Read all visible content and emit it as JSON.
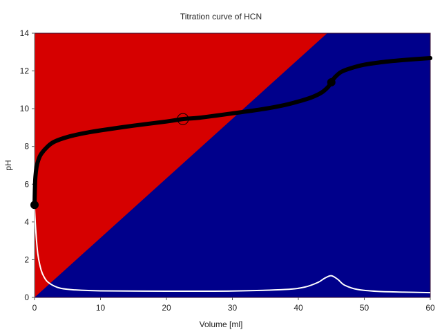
{
  "chart_data": {
    "type": "line",
    "title": "Titration curve of HCN",
    "xlabel": "Volume [ml]",
    "ylabel": "pH",
    "xlim": [
      0,
      60
    ],
    "ylim": [
      0,
      14
    ],
    "xticks": [
      0,
      10,
      20,
      30,
      40,
      50,
      60
    ],
    "yticks": [
      0,
      2,
      4,
      6,
      8,
      10,
      12,
      14
    ],
    "grid": false,
    "legend": null,
    "background_regions": [
      {
        "name": "acid-region",
        "color": "#d60000",
        "description": "upper-left triangle above diagonal"
      },
      {
        "name": "base-region",
        "color": "#00008b",
        "description": "lower-right area below diagonal from (0,0) to (~45,14)"
      }
    ],
    "series": [
      {
        "name": "pH",
        "color": "#000000",
        "line_width": 6,
        "x": [
          0,
          0.1,
          0.3,
          0.6,
          1,
          2,
          3,
          5,
          7.5,
          10,
          15,
          20,
          22.5,
          25,
          30,
          35,
          38,
          40,
          42,
          43.5,
          44.5,
          45,
          45.5,
          46.5,
          48,
          50,
          53,
          56,
          60
        ],
        "y": [
          4.9,
          6.2,
          6.9,
          7.3,
          7.6,
          8.0,
          8.25,
          8.5,
          8.7,
          8.85,
          9.1,
          9.32,
          9.45,
          9.52,
          9.75,
          10.0,
          10.2,
          10.38,
          10.6,
          10.85,
          11.15,
          11.4,
          11.65,
          11.95,
          12.15,
          12.33,
          12.48,
          12.58,
          12.68
        ]
      },
      {
        "name": "derivative",
        "color": "#ffffff",
        "line_width": 2,
        "x": [
          0,
          0.2,
          0.5,
          1,
          1.5,
          2,
          3,
          4,
          6,
          10,
          20,
          30,
          38,
          41,
          43,
          44,
          45,
          46,
          47,
          49,
          52,
          56,
          60
        ],
        "y": [
          4.7,
          3.5,
          2.3,
          1.45,
          1.05,
          0.82,
          0.6,
          0.48,
          0.4,
          0.35,
          0.33,
          0.34,
          0.42,
          0.55,
          0.8,
          1.02,
          1.15,
          0.95,
          0.65,
          0.42,
          0.32,
          0.28,
          0.25
        ]
      }
    ],
    "markers": [
      {
        "name": "start-point",
        "x": 0,
        "y": 4.9,
        "style": "filled",
        "radius": 6
      },
      {
        "name": "half-equivalence-point",
        "x": 22.5,
        "y": 9.45,
        "style": "open",
        "radius": 8
      },
      {
        "name": "equivalence-point",
        "x": 45,
        "y": 11.4,
        "style": "filled",
        "radius": 6
      },
      {
        "name": "end-point",
        "x": 60,
        "y": 12.68,
        "style": "filled",
        "radius": 3
      }
    ],
    "diagonal": {
      "from": [
        0,
        0
      ],
      "to": [
        45,
        14
      ]
    }
  }
}
